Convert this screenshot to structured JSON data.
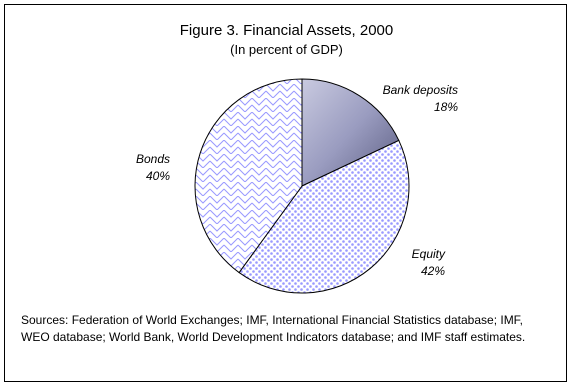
{
  "chart_data": {
    "type": "pie",
    "title": "Figure 3. Financial Assets, 2000",
    "subtitle": "(In percent of GDP)",
    "slices": [
      {
        "label": "Bank deposits",
        "value": 18,
        "value_label": "18%",
        "pattern": "gradient",
        "color": "#8d8fb0"
      },
      {
        "label": "Equity",
        "value": 42,
        "value_label": "42%",
        "pattern": "dots",
        "color": "#9999ff"
      },
      {
        "label": "Bonds",
        "value": 40,
        "value_label": "40%",
        "pattern": "zigzag",
        "color": "#9999ff"
      }
    ],
    "start": "12 o'clock",
    "direction": "clockwise"
  },
  "footer": {
    "source": "Sources: Federation of World Exchanges; IMF, International Financial Statistics database; IMF, WEO database; World Bank, World Development Indicators database; and IMF staff estimates."
  }
}
